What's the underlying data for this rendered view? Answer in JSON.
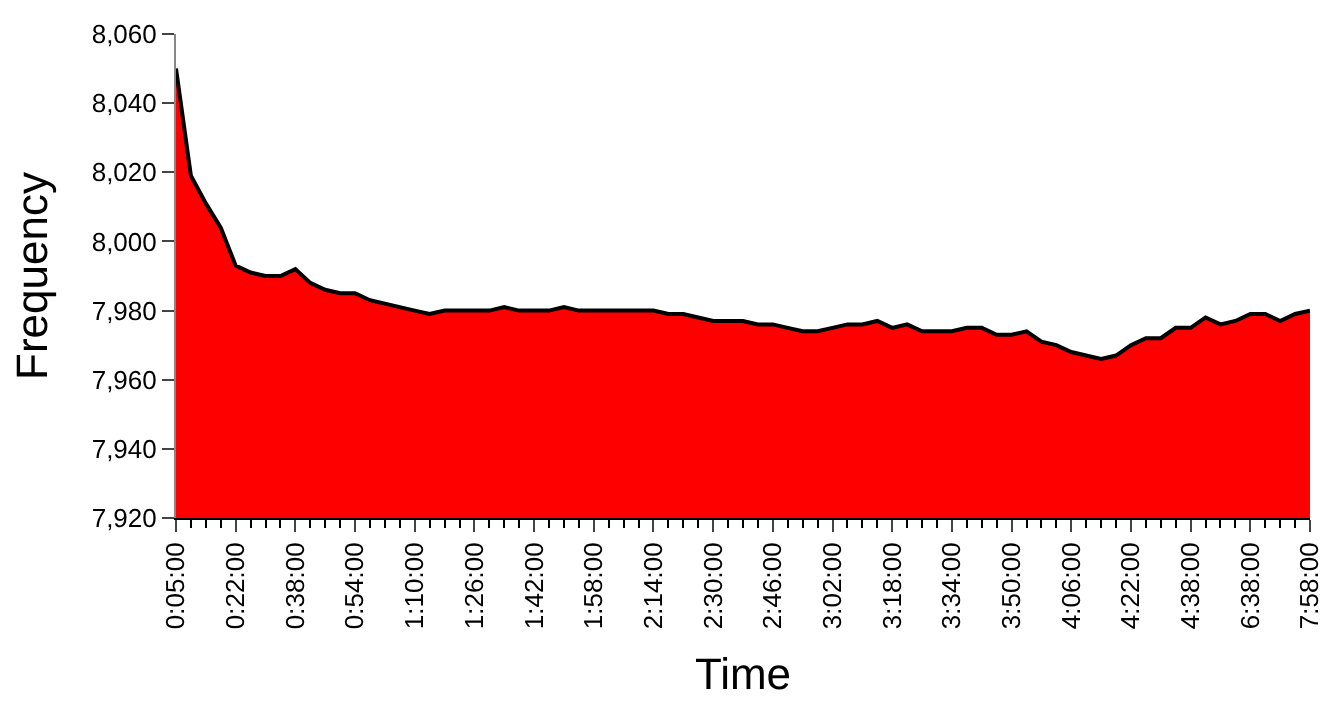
{
  "chart_data": {
    "type": "area",
    "xlabel": "Time",
    "ylabel": "Frequency",
    "categories": [
      "0:05:00",
      null,
      null,
      null,
      "0:22:00",
      null,
      null,
      null,
      "0:38:00",
      null,
      null,
      null,
      "0:54:00",
      null,
      null,
      null,
      "1:10:00",
      null,
      null,
      null,
      "1:26:00",
      null,
      null,
      null,
      "1:42:00",
      null,
      null,
      null,
      "1:58:00",
      null,
      null,
      null,
      "2:14:00",
      null,
      null,
      null,
      "2:30:00",
      null,
      null,
      null,
      "2:46:00",
      null,
      null,
      null,
      "3:02:00",
      null,
      null,
      null,
      "3:18:00",
      null,
      null,
      null,
      "3:34:00",
      null,
      null,
      null,
      "3:50:00",
      null,
      null,
      null,
      "4:06:00",
      null,
      null,
      null,
      "4:22:00",
      null,
      null,
      null,
      "4:38:00",
      null,
      null,
      null,
      "6:38:00",
      null,
      null,
      null,
      "7:58:00"
    ],
    "series": [
      {
        "color": "#ff0000",
        "values": [
          8050,
          8019,
          8011,
          8004,
          7993,
          7991,
          7990,
          7990,
          7992,
          7988,
          7986,
          7985,
          7985,
          7983,
          7982,
          7981,
          7980,
          7979,
          7980,
          7980,
          7980,
          7980,
          7981,
          7980,
          7980,
          7980,
          7981,
          7980,
          7980,
          7980,
          7980,
          7980,
          7980,
          7979,
          7979,
          7978,
          7977,
          7977,
          7977,
          7976,
          7976,
          7975,
          7974,
          7974,
          7975,
          7976,
          7976,
          7977,
          7975,
          7976,
          7974,
          7974,
          7974,
          7975,
          7975,
          7973,
          7973,
          7974,
          7971,
          7970,
          7968,
          7967,
          7966,
          7967,
          7970,
          7972,
          7972,
          7975,
          7975,
          7978,
          7976,
          7977,
          7979,
          7979,
          7977,
          7979,
          7980
        ]
      }
    ],
    "ylim": [
      7920,
      8060
    ],
    "yticks": [
      {
        "value": 7920,
        "label": "7,920"
      },
      {
        "value": 7940,
        "label": "7,940"
      },
      {
        "value": 7960,
        "label": "7,960"
      },
      {
        "value": 7980,
        "label": "7,980"
      },
      {
        "value": 8000,
        "label": "8,000"
      },
      {
        "value": 8020,
        "label": "8,020"
      },
      {
        "value": 8040,
        "label": "8,040"
      },
      {
        "value": 8060,
        "label": "8,060"
      }
    ],
    "legend": false
  }
}
